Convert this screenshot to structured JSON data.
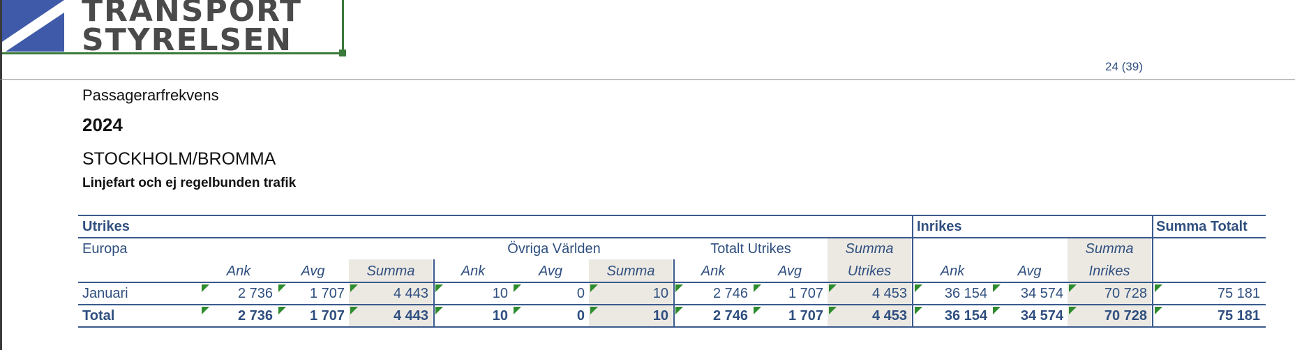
{
  "logo": {
    "line1": "TRANSPORT",
    "line2": "STYRELSEN"
  },
  "page_number": "24 (39)",
  "titles": {
    "category": "Passagerarfrekvens",
    "year": "2024",
    "airport": "STOCKHOLM/BROMMA",
    "traffic_type": "Linjefart och ej regelbunden trafik"
  },
  "table": {
    "groups": {
      "utrikes": "Utrikes",
      "inrikes": "Inrikes",
      "summa_totalt": "Summa Totalt"
    },
    "subgroups": {
      "europa": "Europa",
      "ovriga": "Övriga Världen",
      "totalt_utrikes": "Totalt Utrikes",
      "summa_utrikes_1": "Summa",
      "summa_utrikes_2": "Utrikes",
      "summa_inrikes_1": "Summa",
      "summa_inrikes_2": "Inrikes"
    },
    "columns": {
      "ank": "Ank",
      "avg": "Avg",
      "summa": "Summa"
    },
    "rows": [
      {
        "label": "Januari",
        "values": [
          "2 736",
          "1 707",
          "4 443",
          "10",
          "0",
          "10",
          "2 746",
          "1 707",
          "4 453",
          "36 154",
          "34 574",
          "70 728",
          "75 181"
        ]
      },
      {
        "label": "Total",
        "values": [
          "2 736",
          "1 707",
          "4 443",
          "10",
          "0",
          "10",
          "2 746",
          "1 707",
          "4 453",
          "36 154",
          "34 574",
          "70 728",
          "75 181"
        ]
      }
    ]
  },
  "colors": {
    "table_text": "#2f4f7f",
    "table_lines": "#3a5a8c",
    "summa_shade": "#ece9e3",
    "logo_blue": "#3f5aa8",
    "comment_marker": "#2e8b2e"
  }
}
